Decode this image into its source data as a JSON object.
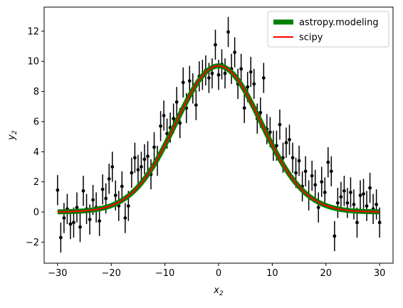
{
  "chart_data": {
    "type": "scatter",
    "title": "",
    "xlabel": "x",
    "xlabel_sub": "2",
    "ylabel": "y",
    "ylabel_sub": "2",
    "xlim": [
      -32.5,
      32.5
    ],
    "ylim": [
      -3.4,
      13.6
    ],
    "xticks": [
      -30,
      -20,
      -10,
      0,
      10,
      20,
      30
    ],
    "yticks": [
      -2,
      0,
      2,
      4,
      6,
      8,
      10,
      12
    ],
    "xtick_labels": [
      "−30",
      "−20",
      "−10",
      "0",
      "10",
      "20",
      "30"
    ],
    "ytick_labels": [
      "−2",
      "0",
      "2",
      "4",
      "6",
      "8",
      "10",
      "12"
    ],
    "grid": false,
    "legend": {
      "placement": "top-right",
      "entries": [
        {
          "name": "astropy.modeling",
          "color": "#008000"
        },
        {
          "name": "scipy",
          "color": "#ff0000"
        }
      ]
    },
    "model": {
      "amplitude": 9.7,
      "mean": 0.0,
      "stddev": 8.0,
      "x_range": [
        -30,
        30
      ]
    },
    "error": 1.0,
    "data": {
      "x": [
        -30.0,
        -29.4,
        -28.8,
        -28.2,
        -27.6,
        -27.0,
        -26.4,
        -25.8,
        -25.2,
        -24.6,
        -24.0,
        -23.4,
        -22.8,
        -22.2,
        -21.6,
        -21.0,
        -20.4,
        -19.8,
        -19.2,
        -18.6,
        -18.0,
        -17.4,
        -16.8,
        -16.2,
        -15.6,
        -15.0,
        -14.4,
        -13.8,
        -13.2,
        -12.6,
        -12.0,
        -11.4,
        -10.8,
        -10.2,
        -9.6,
        -9.0,
        -8.4,
        -7.8,
        -7.2,
        -6.6,
        -6.0,
        -5.4,
        -4.8,
        -4.2,
        -3.6,
        -3.0,
        -2.4,
        -1.8,
        -1.2,
        -0.6,
        0.0,
        0.6,
        1.2,
        1.8,
        2.4,
        3.0,
        3.6,
        4.2,
        4.8,
        5.4,
        6.0,
        6.6,
        7.2,
        7.8,
        8.4,
        9.0,
        9.6,
        10.2,
        10.8,
        11.4,
        12.0,
        12.6,
        13.2,
        13.8,
        14.4,
        15.0,
        15.6,
        16.2,
        16.8,
        17.4,
        18.0,
        18.6,
        19.2,
        19.8,
        20.4,
        21.0,
        21.6,
        22.2,
        22.8,
        23.4,
        24.0,
        24.6,
        25.2,
        25.8,
        26.4,
        27.0,
        27.6,
        28.2,
        28.8,
        29.4,
        30.0
      ],
      "y": [
        1.45,
        -1.7,
        -0.4,
        0.2,
        -0.8,
        -0.7,
        0.3,
        -1.0,
        1.4,
        0.2,
        -0.5,
        0.8,
        0.3,
        -0.6,
        1.5,
        0.9,
        2.2,
        3.0,
        1.1,
        0.4,
        1.7,
        -0.4,
        0.4,
        2.6,
        3.6,
        2.8,
        3.0,
        3.5,
        3.7,
        2.5,
        4.3,
        3.4,
        5.7,
        6.4,
        5.2,
        5.6,
        6.2,
        7.3,
        5.9,
        8.6,
        6.9,
        8.7,
        8.2,
        7.1,
        9.0,
        9.1,
        9.4,
        8.9,
        9.2,
        11.1,
        9.1,
        9.8,
        9.2,
        11.95,
        9.5,
        10.6,
        8.5,
        9.5,
        6.9,
        8.3,
        9.3,
        8.5,
        6.2,
        6.6,
        8.9,
        5.5,
        5.3,
        4.4,
        4.4,
        5.8,
        3.6,
        4.6,
        4.8,
        3.6,
        2.6,
        3.4,
        1.7,
        2.7,
        1.1,
        2.4,
        1.8,
        0.3,
        2.0,
        1.3,
        3.3,
        2.7,
        -1.6,
        0.6,
        1.0,
        1.4,
        0.6,
        1.3,
        0.5,
        -0.7,
        1.1,
        1.2,
        0.4,
        1.6,
        0.2,
        0.5,
        -0.7
      ]
    }
  }
}
